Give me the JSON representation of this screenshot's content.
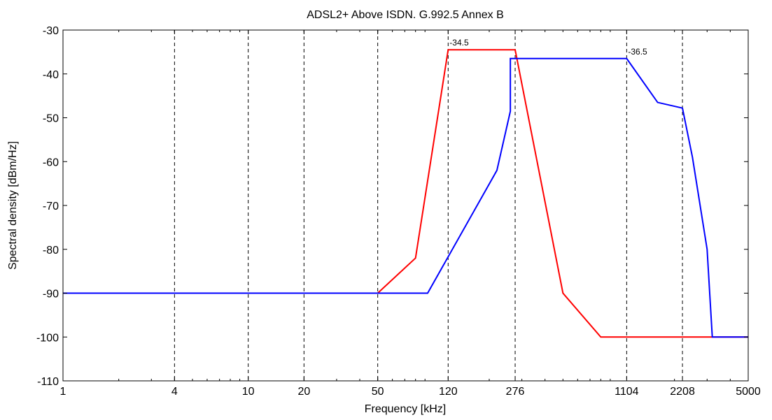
{
  "chart_data": {
    "type": "line",
    "title": "ADSL2+ Above ISDN. G.992.5 Annex B",
    "xlabel": "Frequency [kHz]",
    "ylabel": "Spectral density [dBm/Hz]",
    "x_scale": "log",
    "xlim": [
      1,
      5000
    ],
    "ylim": [
      -110,
      -30
    ],
    "x_ticks": [
      1,
      4,
      10,
      20,
      50,
      120,
      276,
      1104,
      2208,
      5000
    ],
    "x_tick_labels": [
      "1",
      "4",
      "10",
      "20",
      "50",
      "120",
      "276",
      "1104",
      "2208",
      "5000"
    ],
    "y_ticks": [
      -30,
      -40,
      -50,
      -60,
      -70,
      -80,
      -90,
      -100,
      -110
    ],
    "y_tick_labels": [
      "-30",
      "-40",
      "-50",
      "-60",
      "-70",
      "-80",
      "-90",
      "-100",
      "-110"
    ],
    "grid": "vertical dashed at x ticks",
    "series": [
      {
        "color": "#ff0000",
        "x": [
          1,
          50,
          80,
          120,
          276,
          500,
          800,
          5000
        ],
        "y": [
          -90,
          -90,
          -82,
          -34.5,
          -34.5,
          -90,
          -100,
          -100
        ]
      },
      {
        "color": "#0000ff",
        "x": [
          1,
          50,
          93,
          220,
          260,
          260,
          1104,
          1622,
          2208,
          2500,
          3000,
          3200,
          5000
        ],
        "y": [
          -90,
          -90,
          -90,
          -62,
          -48.5,
          -36.5,
          -36.5,
          -46.5,
          -47.8,
          -59,
          -80,
          -100,
          -100
        ]
      }
    ],
    "annotations": [
      {
        "text": "-34.5",
        "x": 120,
        "y": -34.5
      },
      {
        "text": "-36.5",
        "x": 1104,
        "y": -36.5
      }
    ]
  }
}
